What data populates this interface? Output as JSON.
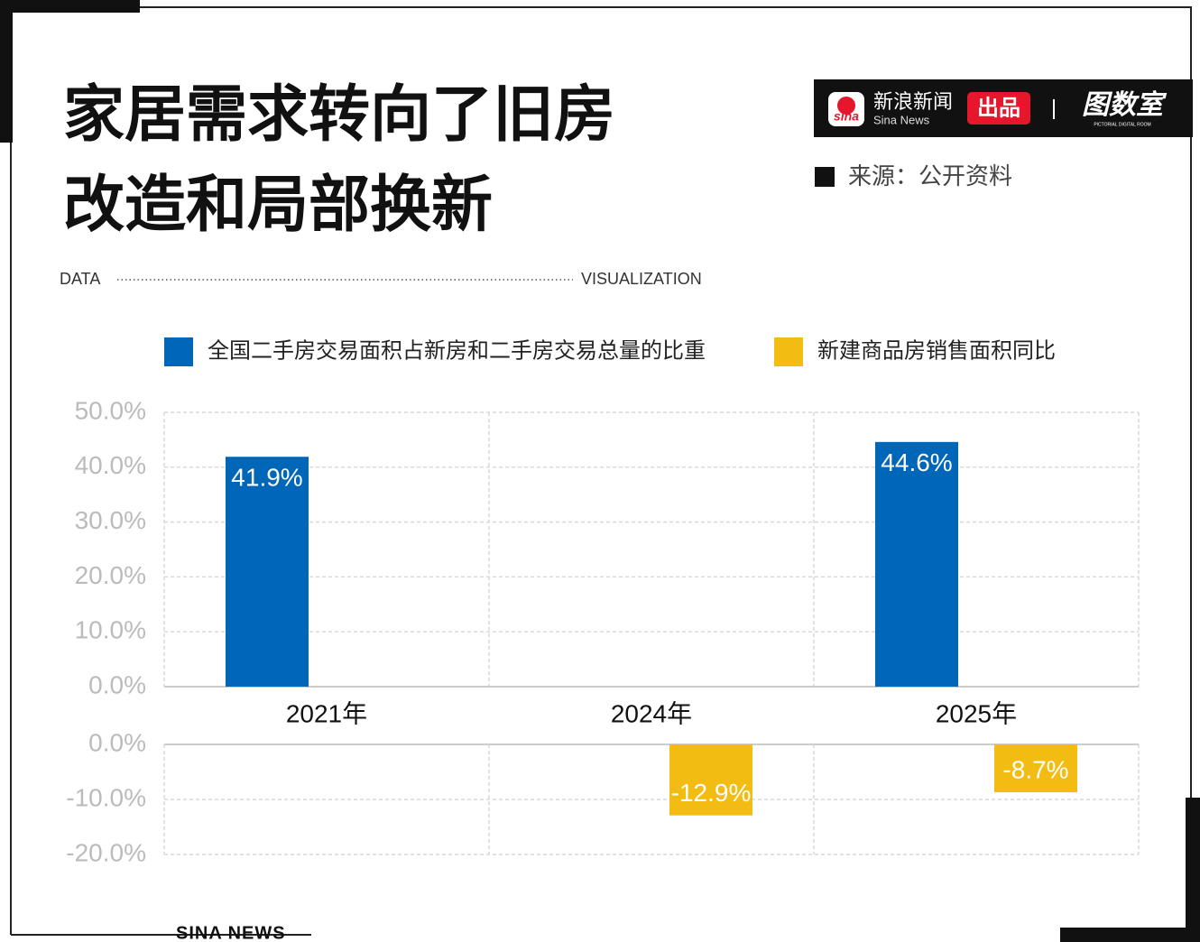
{
  "header": {
    "title": [
      "家居需求转向了旧房",
      "改造和局部换新"
    ],
    "left_tag": "DATA",
    "right_tag": "VISUALIZATION",
    "brand": "新浪新闻",
    "brand_en": "Sina News",
    "produced": "出品",
    "studio": "图数室",
    "studio_en": "PICTORIAL DIGITAL ROOM",
    "source": "来源：公开资料"
  },
  "chart_data": [
    {
      "type": "bar",
      "categories": [
        "2021年",
        "2024年",
        "2025年"
      ],
      "series": [
        {
          "name": "全国二手房交易面积占新房和二手房交易总量的比重",
          "color": "#0066b8",
          "values": [
            41.9,
            null,
            44.6
          ],
          "value_labels": [
            "41.9%",
            null,
            "44.6%"
          ]
        }
      ],
      "ylim": [
        0,
        50
      ],
      "yticks": [
        {
          "value": 0,
          "label": "0.0%"
        },
        {
          "value": 10,
          "label": "10.0%"
        },
        {
          "value": 20,
          "label": "20.0%"
        },
        {
          "value": 30,
          "label": "30.0%"
        },
        {
          "value": 40,
          "label": "40.0%"
        },
        {
          "value": 50,
          "label": "50.0%"
        }
      ],
      "grid": true
    },
    {
      "type": "bar",
      "series": [
        {
          "name": "新建商品房销售面积同比",
          "color": "#f2bc12",
          "values": [
            null,
            -12.9,
            -8.7
          ],
          "value_labels": [
            null,
            "-12.9%",
            "-8.7%"
          ]
        }
      ],
      "ylim": [
        -20,
        0
      ],
      "yticks": [
        {
          "value": 0,
          "label": "0.0%"
        },
        {
          "value": -10,
          "label": "-10.0%"
        },
        {
          "value": -20,
          "label": "-20.0%"
        }
      ],
      "grid": true
    }
  ],
  "footer": "SINA NEWS"
}
